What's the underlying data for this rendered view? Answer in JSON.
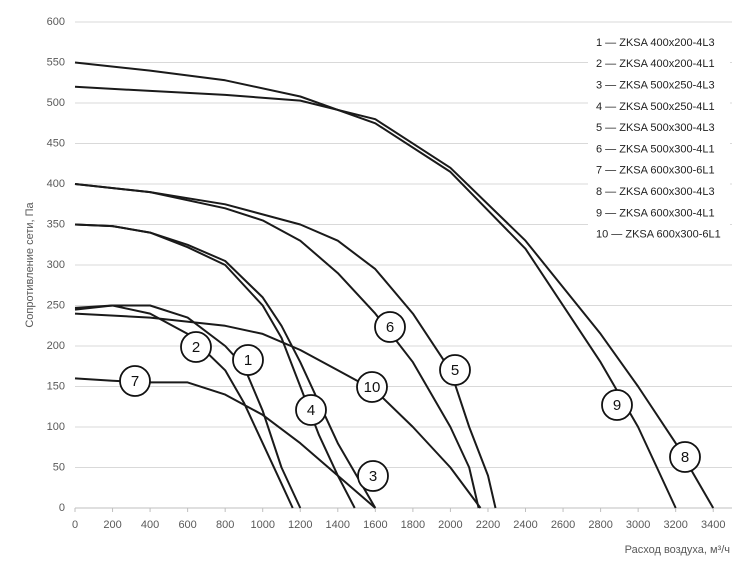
{
  "chart_data": {
    "type": "line",
    "y_label": "Сопротивление сети, Па",
    "x_label": "Расход воздуха, м³/ч",
    "xlim": [
      0,
      3500
    ],
    "xticks": [
      0,
      200,
      400,
      600,
      800,
      1000,
      1200,
      1400,
      1600,
      1800,
      2000,
      2200,
      2400,
      2600,
      2800,
      3000,
      3200,
      3400
    ],
    "ylim": [
      0,
      600
    ],
    "yticks": [
      0,
      50,
      100,
      150,
      200,
      250,
      300,
      350,
      400,
      450,
      500,
      550,
      600
    ],
    "grid": true,
    "legend": "top-right",
    "series": [
      {
        "name": "1 — ZKSA 400x200-4L3",
        "label": "1",
        "color": "#1a1a1a",
        "x": [
          0,
          200,
          400,
          600,
          800,
          900,
          1000,
          1100,
          1200
        ],
        "values": [
          245,
          250,
          250,
          235,
          200,
          175,
          120,
          50,
          0
        ]
      },
      {
        "name": "2 — ZKSA 400x200-4L1",
        "label": "2",
        "color": "#1a1a1a",
        "x": [
          0,
          200,
          400,
          600,
          800,
          900,
          1000,
          1100,
          1160
        ],
        "values": [
          247,
          250,
          240,
          215,
          170,
          130,
          80,
          30,
          0
        ]
      },
      {
        "name": "3 — ZKSA 500x250-4L3",
        "label": "3",
        "color": "#1a1a1a",
        "x": [
          0,
          200,
          400,
          600,
          800,
          1000,
          1100,
          1200,
          1300,
          1400,
          1500,
          1600
        ],
        "values": [
          350,
          348,
          340,
          325,
          305,
          260,
          225,
          180,
          130,
          80,
          40,
          0
        ]
      },
      {
        "name": "4 — ZKSA 500x250-4L1",
        "label": "4",
        "color": "#1a1a1a",
        "x": [
          0,
          200,
          400,
          600,
          800,
          1000,
          1100,
          1200,
          1300,
          1400,
          1490
        ],
        "values": [
          350,
          348,
          340,
          322,
          300,
          250,
          210,
          150,
          90,
          40,
          0
        ]
      },
      {
        "name": "5 — ZKSA 500x300-4L3",
        "label": "5",
        "color": "#1a1a1a",
        "x": [
          0,
          400,
          800,
          1200,
          1400,
          1600,
          1800,
          2000,
          2100,
          2200,
          2240
        ],
        "values": [
          400,
          390,
          375,
          350,
          330,
          295,
          240,
          170,
          100,
          40,
          0
        ]
      },
      {
        "name": "6 — ZKSA 500x300-4L1",
        "label": "6",
        "color": "#1a1a1a",
        "x": [
          0,
          400,
          800,
          1000,
          1200,
          1400,
          1600,
          1800,
          2000,
          2100,
          2150
        ],
        "values": [
          400,
          390,
          370,
          355,
          330,
          290,
          240,
          180,
          100,
          50,
          0
        ]
      },
      {
        "name": "7 — ZKSA 600x300-6L1",
        "label": "7",
        "color": "#1a1a1a",
        "x": [
          0,
          200,
          400,
          600,
          800,
          1000,
          1200,
          1400,
          1600
        ],
        "values": [
          160,
          157,
          155,
          155,
          140,
          115,
          80,
          40,
          0
        ]
      },
      {
        "name": "8 — ZKSA 600x300-4L3",
        "label": "8",
        "color": "#1a1a1a",
        "x": [
          0,
          400,
          800,
          1200,
          1600,
          2000,
          2400,
          2800,
          3000,
          3200,
          3400
        ],
        "values": [
          520,
          515,
          510,
          503,
          480,
          420,
          330,
          215,
          150,
          80,
          0
        ]
      },
      {
        "name": "9 — ZKSA 600x300-4L1",
        "label": "9",
        "color": "#1a1a1a",
        "x": [
          0,
          400,
          800,
          1200,
          1600,
          2000,
          2400,
          2800,
          3000,
          3200
        ],
        "values": [
          550,
          540,
          528,
          508,
          475,
          415,
          320,
          180,
          100,
          0
        ]
      },
      {
        "name": "10 — ZKSA 600x300-6L1",
        "label": "10",
        "color": "#1a1a1a",
        "x": [
          0,
          400,
          800,
          1000,
          1200,
          1400,
          1600,
          1800,
          2000,
          2160
        ],
        "values": [
          240,
          235,
          225,
          215,
          195,
          170,
          145,
          100,
          50,
          0
        ]
      }
    ]
  }
}
